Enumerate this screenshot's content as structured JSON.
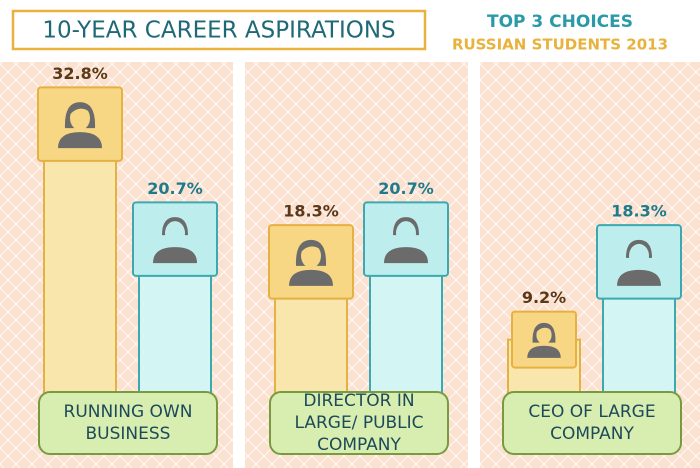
{
  "chart_data": {
    "type": "bar",
    "title": "10-YEAR CAREER ASPIRATIONS",
    "subtitle": [
      "TOP 3 CHOICES",
      "RUSSIAN STUDENTS 2013"
    ],
    "categories": [
      "RUNNING OWN BUSINESS",
      "DIRECTOR IN LARGE/ PUBLIC COMPANY",
      "CEO OF LARGE COMPANY"
    ],
    "series": [
      {
        "color": "#f7d684",
        "values": [
          32.8,
          18.3,
          9.2
        ],
        "value_labels": [
          "32.8%",
          "18.3%",
          "9.2%"
        ]
      },
      {
        "color": "#bdeeed",
        "values": [
          20.7,
          20.7,
          18.3
        ],
        "value_labels": [
          "20.7%",
          "20.7%",
          "18.3%"
        ]
      }
    ]
  }
}
